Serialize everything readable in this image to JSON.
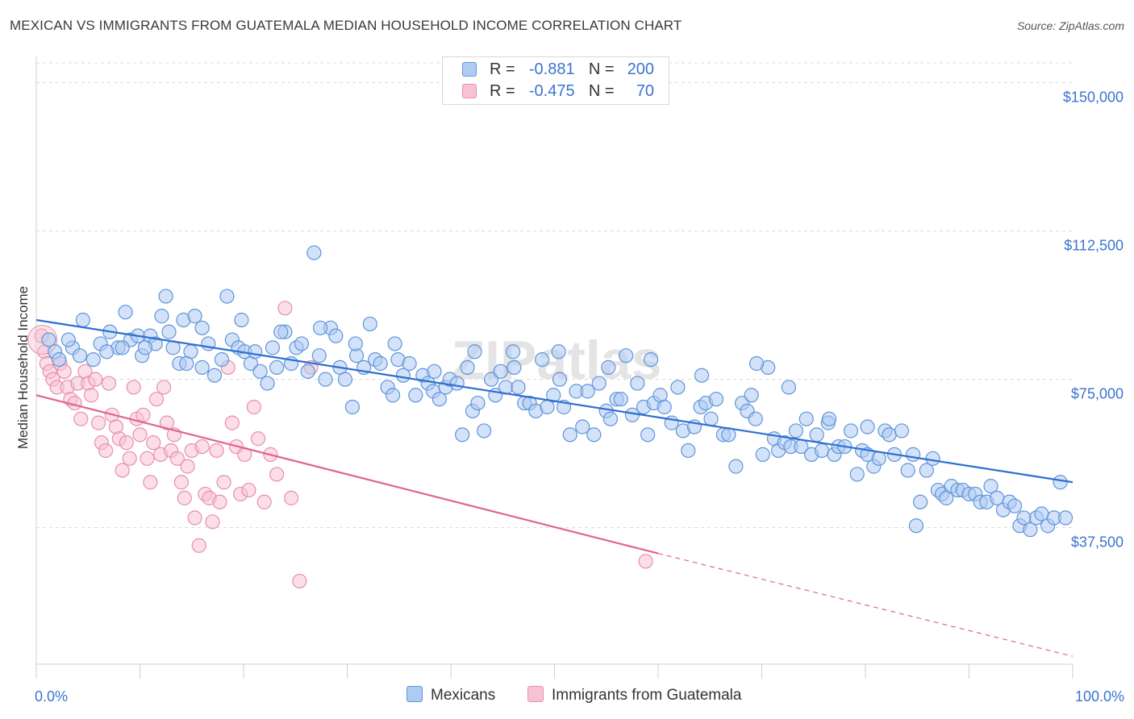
{
  "title": "MEXICAN VS IMMIGRANTS FROM GUATEMALA MEDIAN HOUSEHOLD INCOME CORRELATION CHART",
  "source": "Source: ZipAtlas.com",
  "watermark": "ZIPatlas",
  "colors": {
    "blue_fill": "#aecbf2",
    "blue_stroke": "#5e95db",
    "blue_line": "#2d6fd0",
    "pink_fill": "#f7c2d3",
    "pink_stroke": "#e98fab",
    "pink_line": "#e0658e",
    "axis_text": "#3a74d0",
    "grid": "#d9d9d9"
  },
  "legend": {
    "rows": [
      {
        "r_label": "R =",
        "r_value": "-0.881",
        "n_label": "N =",
        "n_value": "200"
      },
      {
        "r_label": "R =",
        "r_value": "-0.475",
        "n_label": "N =",
        "n_value": "70"
      }
    ]
  },
  "bottom_legend": [
    "Mexicans",
    "Immigrants from Guatemala"
  ],
  "chart_data": {
    "type": "scatter",
    "title": "MEXICAN VS IMMIGRANTS FROM GUATEMALA MEDIAN HOUSEHOLD INCOME CORRELATION CHART",
    "xlabel": "",
    "ylabel": "Median Household Income",
    "xlim": [
      0,
      100
    ],
    "ylim": [
      3000,
      155000
    ],
    "x_ticks": [
      "0.0%",
      "100.0%"
    ],
    "y_ticks": [
      {
        "value": 37500,
        "label": "$37,500"
      },
      {
        "value": 75000,
        "label": "$75,000"
      },
      {
        "value": 112500,
        "label": "$112,500"
      },
      {
        "value": 150000,
        "label": "$150,000"
      }
    ],
    "grid": true,
    "series": [
      {
        "name": "Mexicans",
        "r": -0.881,
        "n": 200,
        "trend": {
          "x": [
            0,
            100
          ],
          "y": [
            90000,
            49000
          ]
        },
        "points": [
          [
            1.2,
            85
          ],
          [
            1.8,
            82
          ],
          [
            2.2,
            80
          ],
          [
            3.5,
            83
          ],
          [
            4.2,
            81
          ],
          [
            5.5,
            80
          ],
          [
            6.2,
            84
          ],
          [
            7.1,
            87
          ],
          [
            7.9,
            83
          ],
          [
            8.6,
            92
          ],
          [
            9.1,
            85
          ],
          [
            9.8,
            86
          ],
          [
            10.2,
            81
          ],
          [
            11.0,
            86
          ],
          [
            11.5,
            84
          ],
          [
            12.5,
            96
          ],
          [
            12.8,
            87
          ],
          [
            13.2,
            83
          ],
          [
            13.8,
            79
          ],
          [
            14.2,
            90
          ],
          [
            14.9,
            82
          ],
          [
            15.3,
            91
          ],
          [
            16.0,
            78
          ],
          [
            16.6,
            84
          ],
          [
            17.2,
            76
          ],
          [
            17.9,
            80
          ],
          [
            18.4,
            96
          ],
          [
            18.9,
            85
          ],
          [
            19.5,
            83
          ],
          [
            20.1,
            82
          ],
          [
            20.7,
            79
          ],
          [
            21.1,
            82
          ],
          [
            21.6,
            77
          ],
          [
            22.3,
            74
          ],
          [
            22.8,
            83
          ],
          [
            23.2,
            78
          ],
          [
            24.0,
            87
          ],
          [
            24.6,
            79
          ],
          [
            25.1,
            83
          ],
          [
            25.6,
            84
          ],
          [
            26.2,
            77
          ],
          [
            26.8,
            107
          ],
          [
            27.3,
            81
          ],
          [
            27.9,
            75
          ],
          [
            28.4,
            88
          ],
          [
            28.9,
            86
          ],
          [
            29.3,
            78
          ],
          [
            29.8,
            75
          ],
          [
            30.5,
            68
          ],
          [
            30.9,
            81
          ],
          [
            31.6,
            78
          ],
          [
            32.2,
            89
          ],
          [
            32.7,
            80
          ],
          [
            33.2,
            79
          ],
          [
            33.9,
            73
          ],
          [
            34.4,
            71
          ],
          [
            34.9,
            80
          ],
          [
            35.4,
            76
          ],
          [
            36.0,
            79
          ],
          [
            36.6,
            71
          ],
          [
            37.3,
            76
          ],
          [
            37.8,
            74
          ],
          [
            38.3,
            72
          ],
          [
            38.9,
            70
          ],
          [
            39.5,
            73
          ],
          [
            39.9,
            75
          ],
          [
            40.6,
            74
          ],
          [
            41.1,
            61
          ],
          [
            41.6,
            78
          ],
          [
            42.1,
            67
          ],
          [
            42.6,
            69
          ],
          [
            43.2,
            62
          ],
          [
            43.9,
            75
          ],
          [
            44.3,
            71
          ],
          [
            44.8,
            77
          ],
          [
            45.3,
            73
          ],
          [
            46.0,
            82
          ],
          [
            46.5,
            73
          ],
          [
            47.1,
            69
          ],
          [
            47.6,
            69
          ],
          [
            48.2,
            67
          ],
          [
            48.8,
            80
          ],
          [
            49.3,
            68
          ],
          [
            49.9,
            71
          ],
          [
            50.5,
            75
          ],
          [
            50.9,
            68
          ],
          [
            51.5,
            61
          ],
          [
            52.1,
            72
          ],
          [
            52.7,
            63
          ],
          [
            53.2,
            72
          ],
          [
            53.8,
            61
          ],
          [
            54.3,
            74
          ],
          [
            55.0,
            67
          ],
          [
            55.4,
            65
          ],
          [
            56.0,
            70
          ],
          [
            56.4,
            70
          ],
          [
            56.9,
            81
          ],
          [
            57.5,
            66
          ],
          [
            58.0,
            74
          ],
          [
            58.6,
            68
          ],
          [
            59.0,
            61
          ],
          [
            59.6,
            69
          ],
          [
            60.2,
            71
          ],
          [
            60.6,
            68
          ],
          [
            61.3,
            64
          ],
          [
            61.9,
            73
          ],
          [
            62.4,
            62
          ],
          [
            62.9,
            57
          ],
          [
            63.5,
            63
          ],
          [
            64.1,
            68
          ],
          [
            64.6,
            69
          ],
          [
            65.1,
            65
          ],
          [
            65.6,
            70
          ],
          [
            66.3,
            61
          ],
          [
            66.8,
            61
          ],
          [
            67.5,
            53
          ],
          [
            68.1,
            69
          ],
          [
            68.6,
            67
          ],
          [
            69.0,
            71
          ],
          [
            69.4,
            65
          ],
          [
            70.1,
            56
          ],
          [
            70.6,
            78
          ],
          [
            71.2,
            60
          ],
          [
            71.6,
            57
          ],
          [
            72.2,
            59
          ],
          [
            72.8,
            58
          ],
          [
            73.3,
            62
          ],
          [
            73.8,
            58
          ],
          [
            74.3,
            65
          ],
          [
            74.8,
            56
          ],
          [
            75.3,
            61
          ],
          [
            75.8,
            57
          ],
          [
            76.4,
            64
          ],
          [
            77.0,
            56
          ],
          [
            77.4,
            58
          ],
          [
            78.0,
            58
          ],
          [
            78.6,
            62
          ],
          [
            79.2,
            51
          ],
          [
            79.7,
            57
          ],
          [
            80.2,
            56
          ],
          [
            80.8,
            53
          ],
          [
            81.3,
            55
          ],
          [
            81.9,
            62
          ],
          [
            82.3,
            61
          ],
          [
            82.8,
            56
          ],
          [
            83.5,
            62
          ],
          [
            84.1,
            52
          ],
          [
            84.6,
            56
          ],
          [
            85.3,
            44
          ],
          [
            85.9,
            52
          ],
          [
            86.5,
            55
          ],
          [
            87.0,
            47
          ],
          [
            87.4,
            46
          ],
          [
            87.8,
            45
          ],
          [
            88.3,
            48
          ],
          [
            88.9,
            47
          ],
          [
            89.4,
            47
          ],
          [
            90.0,
            46
          ],
          [
            90.6,
            46
          ],
          [
            91.1,
            44
          ],
          [
            91.7,
            44
          ],
          [
            92.1,
            48
          ],
          [
            92.7,
            45
          ],
          [
            93.3,
            42
          ],
          [
            93.9,
            44
          ],
          [
            94.4,
            43
          ],
          [
            94.9,
            38
          ],
          [
            95.3,
            40
          ],
          [
            95.9,
            37
          ],
          [
            96.5,
            40
          ],
          [
            97.0,
            41
          ],
          [
            97.6,
            38
          ],
          [
            98.2,
            40
          ],
          [
            98.8,
            49
          ],
          [
            99.3,
            40
          ],
          [
            84.9,
            38
          ],
          [
            80.2,
            63
          ],
          [
            76.5,
            65
          ],
          [
            72.6,
            73
          ],
          [
            69.5,
            79
          ],
          [
            64.2,
            76
          ],
          [
            59.3,
            80
          ],
          [
            55.2,
            78
          ],
          [
            50.4,
            82
          ],
          [
            46.1,
            78
          ],
          [
            42.3,
            82
          ],
          [
            38.4,
            77
          ],
          [
            34.6,
            84
          ],
          [
            30.8,
            84
          ],
          [
            27.4,
            88
          ],
          [
            23.6,
            87
          ],
          [
            19.8,
            90
          ],
          [
            16.0,
            88
          ],
          [
            12.1,
            91
          ],
          [
            8.3,
            83
          ],
          [
            4.5,
            90
          ],
          [
            3.1,
            85
          ],
          [
            6.8,
            82
          ],
          [
            10.5,
            83
          ],
          [
            14.5,
            79
          ]
        ]
      },
      {
        "name": "Immigrants from Guatemala",
        "r": -0.475,
        "n": 70,
        "trend": {
          "x": [
            0,
            60
          ],
          "y": [
            71000,
            31000
          ]
        },
        "trend_dashed": {
          "x": [
            60,
            100
          ],
          "y": [
            31000,
            5000
          ]
        },
        "points": [
          [
            0.5,
            86
          ],
          [
            0.8,
            82
          ],
          [
            1.0,
            79
          ],
          [
            1.3,
            77
          ],
          [
            1.6,
            75
          ],
          [
            2.0,
            73
          ],
          [
            2.3,
            79
          ],
          [
            2.7,
            77
          ],
          [
            3.0,
            73
          ],
          [
            3.3,
            70
          ],
          [
            3.7,
            69
          ],
          [
            4.0,
            74
          ],
          [
            4.3,
            65
          ],
          [
            4.7,
            77
          ],
          [
            5.0,
            74
          ],
          [
            5.3,
            71
          ],
          [
            5.7,
            75
          ],
          [
            6.0,
            64
          ],
          [
            6.3,
            59
          ],
          [
            6.7,
            57
          ],
          [
            7.0,
            74
          ],
          [
            7.3,
            66
          ],
          [
            7.7,
            63
          ],
          [
            8.0,
            60
          ],
          [
            8.3,
            52
          ],
          [
            8.7,
            59
          ],
          [
            9.0,
            55
          ],
          [
            9.4,
            73
          ],
          [
            9.7,
            65
          ],
          [
            10.0,
            61
          ],
          [
            10.3,
            66
          ],
          [
            10.7,
            55
          ],
          [
            11.0,
            49
          ],
          [
            11.3,
            59
          ],
          [
            11.6,
            70
          ],
          [
            12.0,
            56
          ],
          [
            12.3,
            73
          ],
          [
            12.6,
            64
          ],
          [
            13.0,
            57
          ],
          [
            13.3,
            61
          ],
          [
            13.6,
            55
          ],
          [
            14.0,
            49
          ],
          [
            14.3,
            45
          ],
          [
            14.6,
            53
          ],
          [
            15.0,
            57
          ],
          [
            15.3,
            40
          ],
          [
            15.7,
            33
          ],
          [
            16.0,
            58
          ],
          [
            16.3,
            46
          ],
          [
            16.7,
            45
          ],
          [
            17.0,
            39
          ],
          [
            17.4,
            57
          ],
          [
            17.7,
            44
          ],
          [
            18.1,
            49
          ],
          [
            18.5,
            78
          ],
          [
            18.9,
            64
          ],
          [
            19.3,
            58
          ],
          [
            19.7,
            46
          ],
          [
            20.1,
            56
          ],
          [
            20.5,
            47
          ],
          [
            21.0,
            68
          ],
          [
            21.4,
            60
          ],
          [
            22.0,
            44
          ],
          [
            22.6,
            56
          ],
          [
            23.2,
            51
          ],
          [
            24.0,
            93
          ],
          [
            24.6,
            45
          ],
          [
            25.4,
            24
          ],
          [
            26.5,
            78
          ],
          [
            58.8,
            29
          ]
        ]
      }
    ]
  }
}
